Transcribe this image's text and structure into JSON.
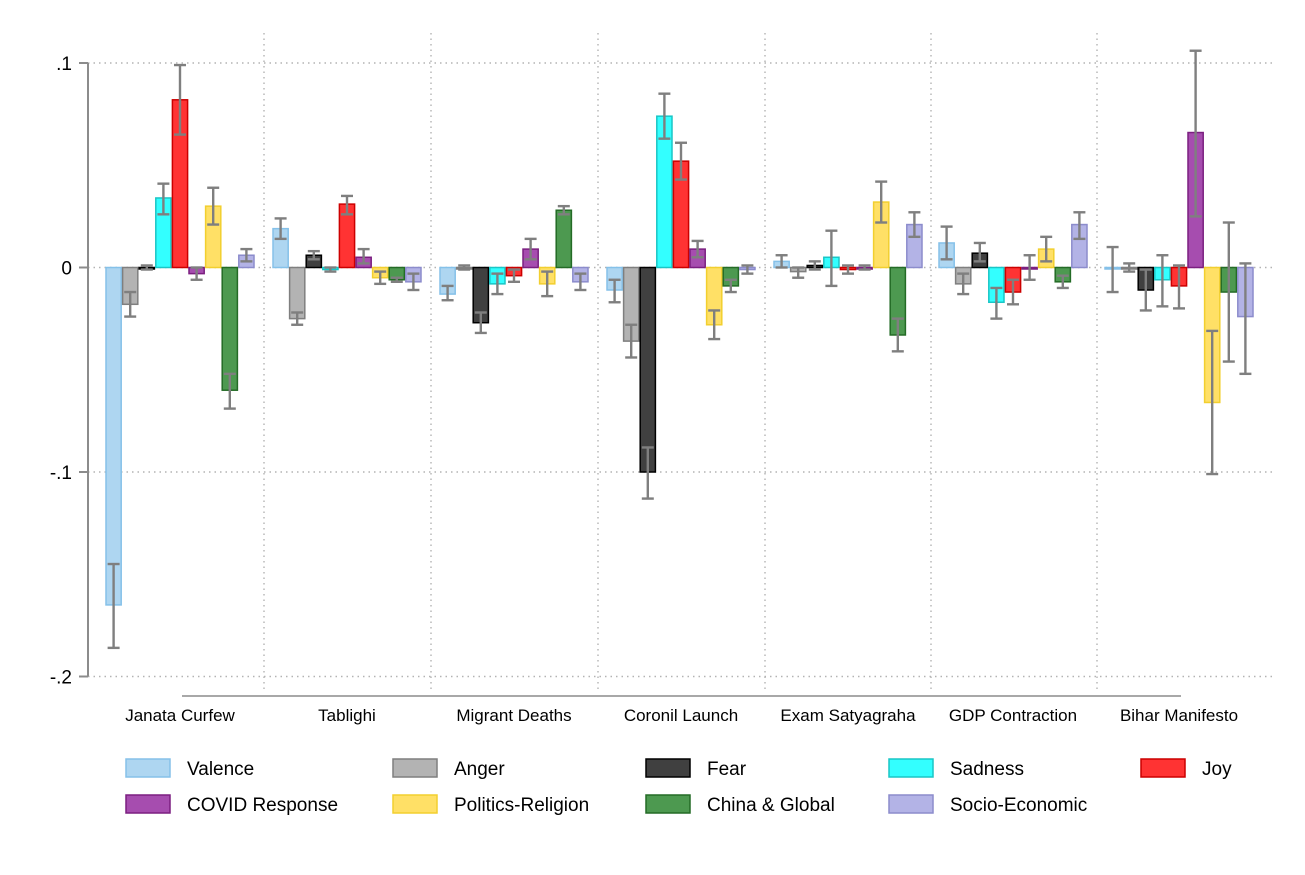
{
  "chart_data": {
    "type": "bar",
    "title": "",
    "xlabel": "",
    "ylabel": "",
    "ylim": [
      -0.2,
      0.1
    ],
    "yticks": [
      0.1,
      0,
      -0.1,
      -0.2
    ],
    "ytick_labels": [
      ".1",
      "0",
      "-.1",
      "-.2"
    ],
    "grid": true,
    "legend_position": "bottom",
    "categories": [
      "Janata Curfew",
      "Tablighi",
      "Migrant Deaths",
      "Coronil Launch",
      "Exam Satyagraha",
      "GDP Contraction",
      "Bihar Manifesto"
    ],
    "series": [
      {
        "name": "Valence",
        "color": "#AED6F1",
        "stroke": "#85C1E9",
        "values": [
          -0.165,
          0.019,
          -0.013,
          -0.011,
          0.003,
          0.012,
          0.0
        ],
        "lower": [
          -0.186,
          0.014,
          -0.016,
          -0.017,
          0.0,
          0.004,
          -0.012
        ],
        "upper": [
          -0.145,
          0.024,
          -0.009,
          -0.006,
          0.006,
          0.02,
          0.01
        ]
      },
      {
        "name": "Anger",
        "color": "#B3B3B3",
        "stroke": "#7F7F7F",
        "values": [
          -0.018,
          -0.025,
          0.0,
          -0.036,
          -0.002,
          -0.008,
          0.0
        ],
        "lower": [
          -0.024,
          -0.028,
          -0.001,
          -0.044,
          -0.005,
          -0.013,
          -0.002
        ],
        "upper": [
          -0.012,
          -0.022,
          0.001,
          -0.028,
          0.0,
          -0.003,
          0.002
        ]
      },
      {
        "name": "Fear",
        "color": "#404040",
        "stroke": "#000000",
        "values": [
          0.0,
          0.006,
          -0.027,
          -0.1,
          0.001,
          0.007,
          -0.011
        ],
        "lower": [
          -0.001,
          0.004,
          -0.032,
          -0.113,
          -0.001,
          0.003,
          -0.021
        ],
        "upper": [
          0.001,
          0.008,
          -0.022,
          -0.088,
          0.003,
          0.012,
          -0.001
        ]
      },
      {
        "name": "Sadness",
        "color": "#33FFFF",
        "stroke": "#1AC6C6",
        "values": [
          0.034,
          -0.001,
          -0.008,
          0.074,
          0.005,
          -0.017,
          -0.006
        ],
        "lower": [
          0.026,
          -0.002,
          -0.013,
          0.063,
          -0.009,
          -0.025,
          -0.019
        ],
        "upper": [
          0.041,
          0.0,
          -0.003,
          0.085,
          0.018,
          -0.01,
          0.006
        ]
      },
      {
        "name": "Joy",
        "color": "#FF3333",
        "stroke": "#CC0000",
        "values": [
          0.082,
          0.031,
          -0.004,
          0.052,
          -0.001,
          -0.012,
          -0.009
        ],
        "lower": [
          0.065,
          0.026,
          -0.007,
          0.043,
          -0.003,
          -0.018,
          -0.02
        ],
        "upper": [
          0.099,
          0.035,
          -0.001,
          0.061,
          0.001,
          -0.006,
          0.001
        ]
      },
      {
        "name": "COVID Response",
        "color": "#A64DAF",
        "stroke": "#7B1F80",
        "values": [
          -0.003,
          0.005,
          0.009,
          0.009,
          0.0,
          0.0,
          0.066
        ],
        "lower": [
          -0.006,
          0.002,
          0.004,
          0.005,
          -0.001,
          -0.006,
          0.025
        ],
        "upper": [
          0.0,
          0.009,
          0.014,
          0.013,
          0.001,
          0.006,
          0.106
        ]
      },
      {
        "name": "Politics-Religion",
        "color": "#FFE066",
        "stroke": "#F2CF2F",
        "values": [
          0.03,
          -0.005,
          -0.008,
          -0.028,
          0.032,
          0.009,
          -0.066
        ],
        "lower": [
          0.021,
          -0.008,
          -0.014,
          -0.035,
          0.022,
          0.003,
          -0.101
        ],
        "upper": [
          0.039,
          -0.002,
          -0.002,
          -0.021,
          0.042,
          0.015,
          -0.031
        ]
      },
      {
        "name": "China & Global",
        "color": "#4D9950",
        "stroke": "#246B26",
        "values": [
          -0.06,
          -0.006,
          0.028,
          -0.009,
          -0.033,
          -0.007,
          -0.012
        ],
        "lower": [
          -0.069,
          -0.007,
          0.026,
          -0.012,
          -0.041,
          -0.01,
          -0.046
        ],
        "upper": [
          -0.052,
          -0.005,
          0.03,
          -0.006,
          -0.025,
          -0.004,
          0.022
        ]
      },
      {
        "name": "Socio-Economic",
        "color": "#B3B3E6",
        "stroke": "#8C8CCC",
        "values": [
          0.006,
          -0.007,
          -0.007,
          -0.001,
          0.021,
          0.021,
          -0.024
        ],
        "lower": [
          0.003,
          -0.011,
          -0.011,
          -0.003,
          0.015,
          0.014,
          -0.052
        ],
        "upper": [
          0.009,
          -0.003,
          -0.003,
          0.001,
          0.027,
          0.027,
          0.002
        ]
      }
    ],
    "errorbar_color": "#7F7F7F",
    "legend_order": [
      "Valence",
      "Anger",
      "Fear",
      "Sadness",
      "Joy",
      "COVID Response",
      "Politics-Religion",
      "China & Global",
      "Socio-Economic"
    ]
  }
}
